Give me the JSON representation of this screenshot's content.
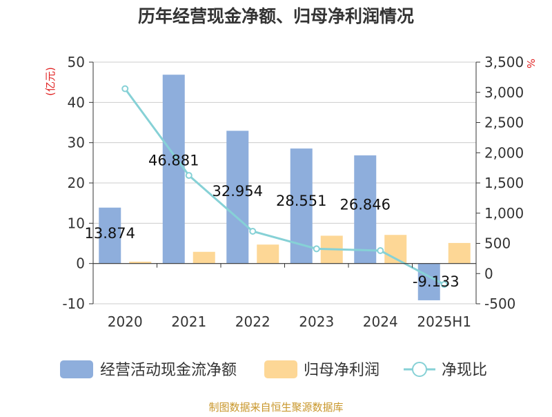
{
  "chart_data": {
    "type": "bar",
    "title": "历年经营现金净额、归母净利润情况",
    "left_axis_unit": "(亿元)",
    "right_axis_unit": "%",
    "categories": [
      "2020",
      "2021",
      "2022",
      "2023",
      "2024",
      "2025H1"
    ],
    "y_left": {
      "min": -10,
      "max": 50,
      "ticks": [
        -10,
        0,
        10,
        20,
        30,
        40,
        50
      ]
    },
    "y_right": {
      "min": -500,
      "max": 3500,
      "ticks": [
        -500,
        0,
        500,
        1000,
        1500,
        2000,
        2500,
        3000,
        3500
      ]
    },
    "grid": true,
    "legend_position": "bottom",
    "series": [
      {
        "name": "经营活动现金流净额",
        "type": "bar",
        "axis": "left",
        "color": "#8eaedc",
        "values": [
          13.874,
          46.881,
          32.954,
          28.551,
          26.846,
          -9.133
        ],
        "labels": [
          "13.874",
          "46.881",
          "32.954",
          "28.551",
          "26.846",
          "-9.133"
        ]
      },
      {
        "name": "归母净利润",
        "type": "bar",
        "axis": "left",
        "color": "#fdd796",
        "values": [
          0.45,
          2.9,
          4.7,
          6.9,
          7.1,
          5.1
        ]
      },
      {
        "name": "净现比",
        "type": "line",
        "axis": "right",
        "color": "#86d1d6",
        "values": [
          3060,
          1625,
          700,
          410,
          380,
          -180
        ]
      }
    ],
    "source": "制图数据来自恒生聚源数据库"
  }
}
